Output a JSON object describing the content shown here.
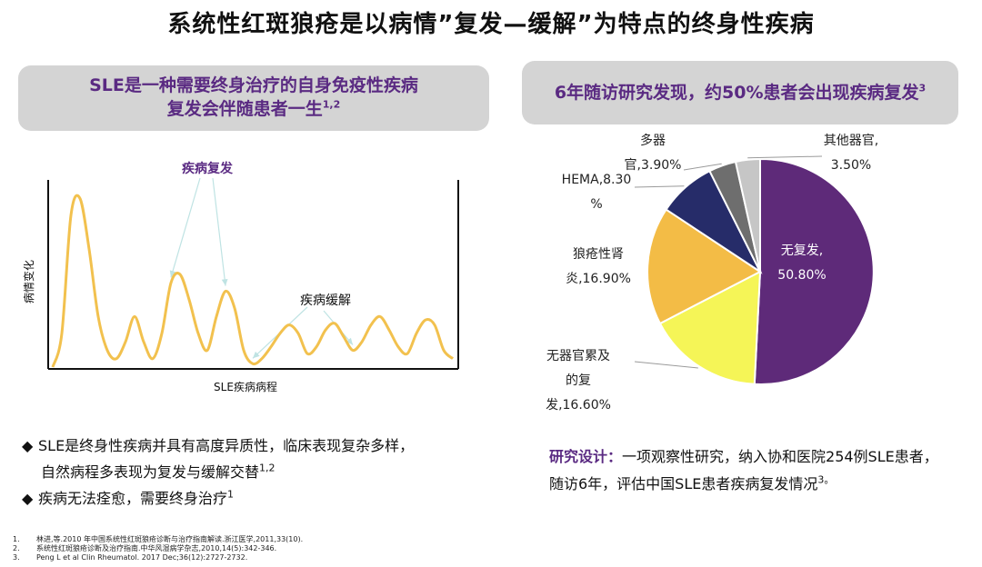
{
  "title": "系统性红斑狼疮是以病情”复发—缓解”为特点的终身性疾病",
  "left_banner": {
    "line1": "SLE是一种需要终身治疗的自身免疫性疾病",
    "line2": "复发会伴随患者一生",
    "sup": "1,2"
  },
  "right_banner": {
    "text": "6年随访研究发现，约50%患者会出现疾病复发",
    "sup": "3"
  },
  "chart_data": [
    {
      "type": "line",
      "title": "",
      "xlabel": "SLE疾病病程",
      "ylabel": "病情变化",
      "annotations": [
        "疾病复发",
        "疾病缓解"
      ],
      "series_color": "#f2c14e",
      "x": [
        0,
        1,
        2,
        3,
        4,
        5,
        6,
        7,
        8,
        9,
        10,
        11,
        12,
        13,
        14,
        15,
        16,
        17,
        18,
        19,
        20,
        21,
        22,
        23,
        24,
        25,
        26,
        27,
        28,
        29,
        30,
        31,
        32,
        33,
        34,
        35,
        36,
        37,
        38,
        39,
        40,
        41,
        42,
        43,
        44
      ],
      "values": [
        0,
        2,
        9,
        10,
        7,
        3,
        1,
        0.5,
        1.5,
        3,
        1.5,
        0.5,
        2,
        5,
        5.5,
        4,
        2,
        1,
        3,
        4.5,
        3.5,
        1,
        0.2,
        0.5,
        1.2,
        2,
        2.5,
        2,
        0.8,
        1.2,
        2.2,
        2.6,
        1.8,
        1,
        1.5,
        2.5,
        3,
        2.2,
        1.2,
        0.8,
        2,
        2.8,
        2.5,
        1,
        0.5
      ],
      "ylim": [
        0,
        11
      ],
      "grid": false
    },
    {
      "type": "pie",
      "title": "",
      "categories": [
        "无复发",
        "无器官累及的复发",
        "狼疮性肾炎",
        "HEMA",
        "多器官",
        "其他器官"
      ],
      "values": [
        50.8,
        16.6,
        16.9,
        8.3,
        3.9,
        3.5
      ],
      "colors": [
        "#5e2a79",
        "#f5f557",
        "#f3bc46",
        "#262c69",
        "#6e6e6e",
        "#c6c6c6"
      ],
      "labels": [
        [
          "无复发,",
          "50.80%"
        ],
        [
          "无器官累及",
          "的复",
          "发,16.60%"
        ],
        [
          "狼疮性肾",
          "炎,16.90%"
        ],
        [
          "HEMA,8.30",
          "%"
        ],
        [
          "多器",
          "官,3.90%"
        ],
        [
          "其他器官,",
          "3.50%"
        ]
      ]
    }
  ],
  "bullets": [
    {
      "marker": "◆",
      "line1": "SLE是终身性疾病并具有高度异质性，临床表现复杂多样，",
      "line2": "自然病程多表现为复发与缓解交替",
      "sup": "1,2"
    },
    {
      "marker": "◆",
      "line1": "疾病无法痊愈，需要终身治疗",
      "sup": "1"
    }
  ],
  "study": {
    "label": "研究设计：",
    "line1": "一项观察性研究，纳入协和医院254例SLE患者，",
    "line2": "随访6年，评估中国SLE患者疾病复发情况",
    "sup": "3。"
  },
  "references": [
    {
      "num": "1.",
      "text": "林进,等.2010 年中国系统性红斑狼疮诊断与治疗指南解读.浙江医学,2011,33(10)."
    },
    {
      "num": "2.",
      "text": "系统性红斑狼疮诊断及治疗指南.中华风湿病学杂志,2010,14(5):342-346."
    },
    {
      "num": "3.",
      "text": "Peng L et al Clin Rheumatol. 2017 Dec;36(12):2727-2732."
    }
  ]
}
